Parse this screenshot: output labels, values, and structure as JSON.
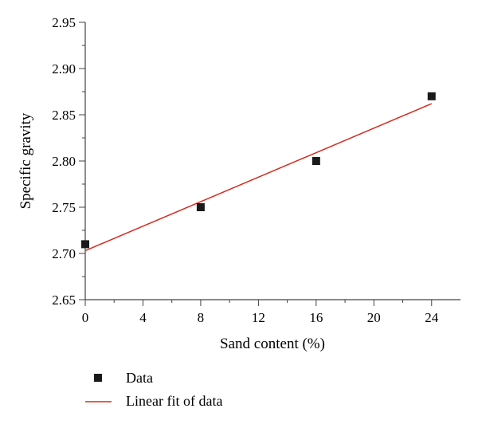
{
  "chart_data": {
    "type": "scatter",
    "xlabel": "Sand content (%)",
    "ylabel": "Specific gravity",
    "xlim": [
      0,
      26
    ],
    "ylim": [
      2.65,
      2.95
    ],
    "x_ticks": [
      "0",
      "4",
      "8",
      "12",
      "16",
      "20",
      "24"
    ],
    "y_ticks": [
      "2.65",
      "2.70",
      "2.75",
      "2.80",
      "2.85",
      "2.90",
      "2.95"
    ],
    "series": [
      {
        "name": "Data",
        "kind": "scatter",
        "marker": "square",
        "color": "#1a1a1a",
        "x": [
          0,
          8,
          16,
          24
        ],
        "y": [
          2.71,
          2.75,
          2.8,
          2.87
        ]
      },
      {
        "name": "Linear fit of data",
        "kind": "line",
        "color": "#d62a1e",
        "x": [
          0,
          24
        ],
        "y": [
          2.703,
          2.862
        ]
      }
    ],
    "legend": "bottom-left",
    "grid": false
  }
}
